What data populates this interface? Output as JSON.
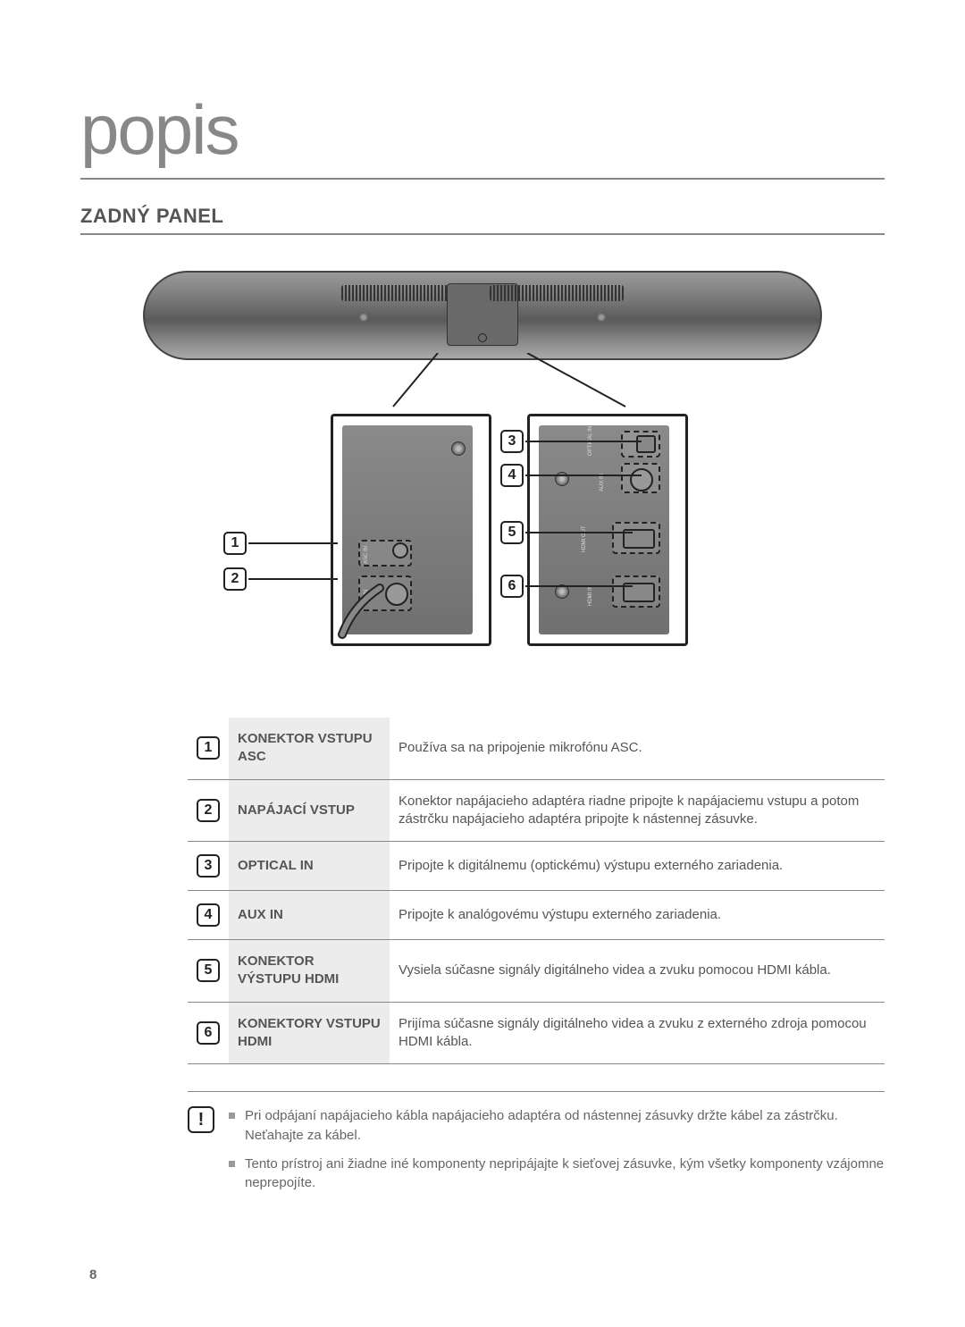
{
  "page": {
    "title": "popis",
    "section_title": "ZADNÝ PANEL",
    "number": "8"
  },
  "diagram": {
    "port_labels_left": {
      "asc_in": "ASC IN",
      "dc_in": "DC IN"
    },
    "port_labels_right": {
      "optical_in": "OPTICAL IN",
      "aux_in": "AUX IN",
      "hdmi_out": "HDMI OUT",
      "hdmi_in": "HDMI IN"
    },
    "callouts": [
      "1",
      "2",
      "3",
      "4",
      "5",
      "6"
    ]
  },
  "table": {
    "header_bg": "#ececec",
    "border_color": "#888888",
    "text_color": "#555555",
    "rows": [
      {
        "num": "1",
        "label": "KONEKTOR VSTUPU ASC",
        "desc": "Používa sa na pripojenie mikrofónu ASC."
      },
      {
        "num": "2",
        "label": "NAPÁJACÍ VSTUP",
        "desc": "Konektor napájacieho adaptéra riadne pripojte k napájaciemu vstupu a potom zástrčku napájacieho adaptéra pripojte k nástennej zásuvke."
      },
      {
        "num": "3",
        "label": "OPTICAL IN",
        "desc": "Pripojte k digitálnemu (optickému) výstupu externého zariadenia."
      },
      {
        "num": "4",
        "label": "AUX IN",
        "desc": "Pripojte k analógovému výstupu externého zariadenia."
      },
      {
        "num": "5",
        "label": "KONEKTOR VÝSTUPU HDMI",
        "desc": "Vysiela súčasne signály digitálneho videa a zvuku pomocou HDMI kábla."
      },
      {
        "num": "6",
        "label": "KONEKTORY VSTUPU HDMI",
        "desc": "Prijíma súčasne signály digitálneho videa a zvuku z externého zdroja pomocou HDMI kábla."
      }
    ]
  },
  "notes": {
    "icon": "!",
    "items": [
      "Pri odpájaní napájacieho kábla napájacieho adaptéra od nástennej zásuvky držte kábel za zástrčku. Neťahajte za kábel.",
      "Tento prístroj ani žiadne iné komponenty nepripájajte k sieťovej zásuvke, kým všetky komponenty vzájomne neprepojíte."
    ]
  },
  "colors": {
    "title_color": "#888888",
    "text_color": "#4a4a4a",
    "rule_color": "#888888",
    "box_border": "#222222",
    "background": "#ffffff"
  }
}
